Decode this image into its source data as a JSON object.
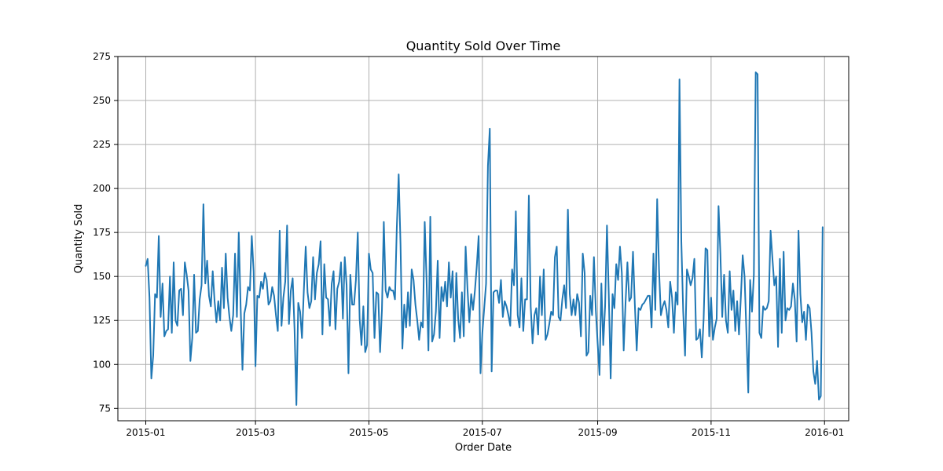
{
  "chart_data": {
    "type": "line",
    "title": "Quantity Sold Over Time",
    "xlabel": "Order Date",
    "ylabel": "Quantity Sold",
    "xlim": [
      "2014-12-17",
      "2016-01-14"
    ],
    "ylim": [
      68,
      275
    ],
    "x_ticks": [
      "2015-01",
      "2015-03",
      "2015-05",
      "2015-07",
      "2015-09",
      "2015-11",
      "2016-01"
    ],
    "y_ticks": [
      75,
      100,
      125,
      150,
      175,
      200,
      225,
      250,
      275
    ],
    "grid": true,
    "series_color": "#1f77b4",
    "series": [
      {
        "x_start": "2015-01-01",
        "x_step_days": 1,
        "values": [
          156,
          160,
          138,
          92,
          105,
          140,
          138,
          173,
          127,
          146,
          116,
          119,
          120,
          150,
          118,
          158,
          125,
          122,
          142,
          143,
          128,
          158,
          151,
          142,
          102,
          115,
          151,
          118,
          119,
          137,
          145,
          191,
          146,
          159,
          139,
          133,
          153,
          136,
          124,
          136,
          125,
          155,
          132,
          163,
          138,
          127,
          119,
          128,
          163,
          127,
          175,
          133,
          97,
          129,
          134,
          144,
          142,
          173,
          153,
          99,
          139,
          138,
          147,
          143,
          152,
          148,
          134,
          136,
          144,
          139,
          128,
          119,
          176,
          122,
          138,
          147,
          179,
          123,
          142,
          149,
          120,
          77,
          135,
          130,
          115,
          142,
          167,
          141,
          132,
          136,
          161,
          137,
          152,
          157,
          170,
          117,
          157,
          138,
          137,
          122,
          146,
          153,
          120,
          143,
          147,
          158,
          126,
          161,
          145,
          95,
          151,
          134,
          134,
          148,
          175,
          126,
          111,
          133,
          107,
          111,
          163,
          154,
          152,
          115,
          141,
          140,
          107,
          131,
          181,
          142,
          138,
          144,
          142,
          142,
          137,
          178,
          208,
          168,
          109,
          134,
          121,
          141,
          122,
          154,
          148,
          134,
          125,
          114,
          124,
          121,
          181,
          148,
          108,
          184,
          113,
          117,
          130,
          159,
          115,
          144,
          136,
          147,
          133,
          158,
          138,
          153,
          113,
          152,
          126,
          115,
          141,
          116,
          167,
          143,
          124,
          140,
          131,
          142,
          156,
          173,
          95,
          118,
          132,
          146,
          213,
          234,
          96,
          141,
          142,
          142,
          135,
          148,
          127,
          136,
          133,
          128,
          122,
          154,
          145,
          187,
          128,
          121,
          149,
          119,
          137,
          137,
          196,
          133,
          112,
          128,
          132,
          117,
          150,
          128,
          154,
          114,
          117,
          123,
          130,
          128,
          161,
          167,
          127,
          125,
          137,
          145,
          132,
          188,
          140,
          128,
          137,
          128,
          140,
          135,
          116,
          163,
          152,
          105,
          107,
          139,
          128,
          161,
          131,
          112,
          94,
          146,
          111,
          133,
          179,
          139,
          92,
          140,
          132,
          157,
          148,
          167,
          152,
          108,
          135,
          158,
          136,
          138,
          164,
          134,
          108,
          132,
          131,
          134,
          135,
          137,
          139,
          139,
          121,
          163,
          131,
          194,
          154,
          128,
          133,
          136,
          131,
          121,
          147,
          138,
          118,
          141,
          134,
          262,
          170,
          130,
          105,
          154,
          150,
          145,
          149,
          160,
          114,
          115,
          120,
          104,
          126,
          166,
          165,
          116,
          138,
          114,
          121,
          126,
          190,
          163,
          127,
          151,
          125,
          118,
          153,
          131,
          142,
          119,
          136,
          117,
          138,
          162,
          150,
          118,
          84,
          148,
          130,
          151,
          266,
          265,
          118,
          115,
          133,
          131,
          132,
          136,
          176,
          160,
          145,
          150,
          110,
          160,
          118,
          164,
          125,
          132,
          131,
          133,
          146,
          137,
          113,
          176,
          140,
          124,
          130,
          114,
          134,
          132,
          118,
          96,
          89,
          102,
          80,
          82,
          178
        ]
      }
    ]
  }
}
